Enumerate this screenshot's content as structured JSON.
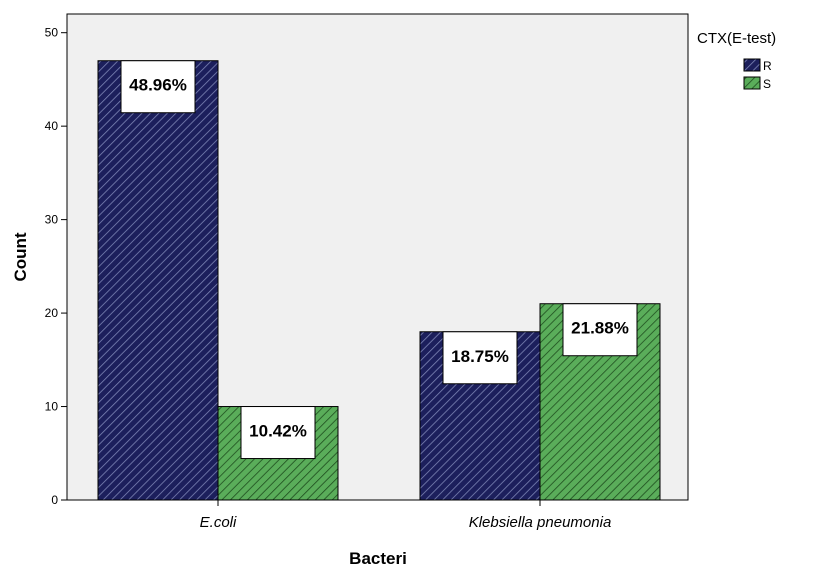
{
  "chart_data": {
    "type": "bar",
    "xlabel": "Bacteri",
    "ylabel": "Count",
    "ylim": [
      0,
      52
    ],
    "yticks": [
      0,
      10,
      20,
      30,
      40,
      50
    ],
    "categories": [
      "E.coli",
      "Klebsiella pneumonia"
    ],
    "legend_title": "CTX(E-test)",
    "legend_position": "right",
    "grid": false,
    "series": [
      {
        "name": "R",
        "values": [
          47,
          18
        ],
        "labels": [
          "48.96%",
          "18.75%"
        ],
        "color": "#1c1f5c",
        "hatch_color": "#7d85b5"
      },
      {
        "name": "S",
        "values": [
          10,
          21
        ],
        "labels": [
          "10.42%",
          "21.88%"
        ],
        "color": "#5aad5a",
        "hatch_color": "#1e4d1e"
      }
    ],
    "plot_background": "#f0f0f0"
  }
}
